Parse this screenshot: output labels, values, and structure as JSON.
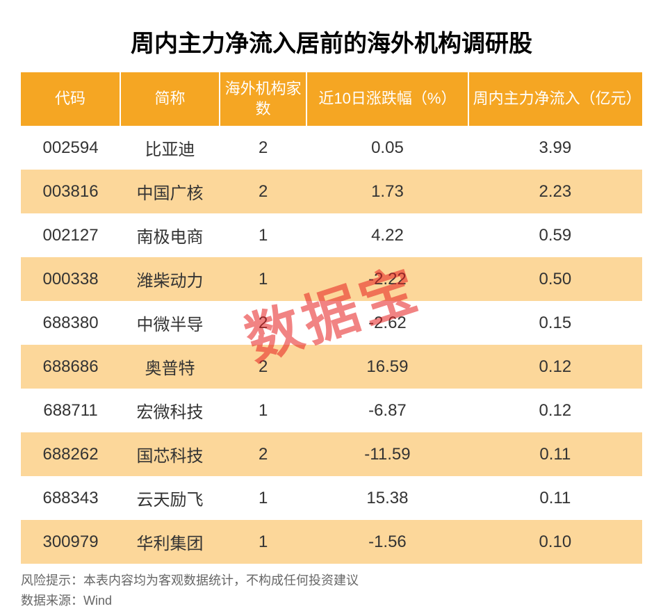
{
  "title": "周内主力净流入居前的海外机构调研股",
  "type": "table",
  "watermark": "数据宝",
  "columns": [
    {
      "label": "代码",
      "class": "col-code"
    },
    {
      "label": "简称",
      "class": "col-name"
    },
    {
      "label": "海外机构家数",
      "class": "col-inst"
    },
    {
      "label": "近10日涨跌幅（%）",
      "class": "col-change"
    },
    {
      "label": "周内主力净流入（亿元）",
      "class": "col-inflow"
    }
  ],
  "rows": [
    [
      "002594",
      "比亚迪",
      "2",
      "0.05",
      "3.99"
    ],
    [
      "003816",
      "中国广核",
      "2",
      "1.73",
      "2.23"
    ],
    [
      "002127",
      "南极电商",
      "1",
      "4.22",
      "0.59"
    ],
    [
      "000338",
      "潍柴动力",
      "1",
      "-2.22",
      "0.50"
    ],
    [
      "688380",
      "中微半导",
      "2",
      "-2.62",
      "0.15"
    ],
    [
      "688686",
      "奥普特",
      "2",
      "16.59",
      "0.12"
    ],
    [
      "688711",
      "宏微科技",
      "1",
      "-6.87",
      "0.12"
    ],
    [
      "688262",
      "国芯科技",
      "2",
      "-11.59",
      "0.11"
    ],
    [
      "688343",
      "云天励飞",
      "1",
      "15.38",
      "0.11"
    ],
    [
      "300979",
      "华利集团",
      "1",
      "-1.56",
      "0.10"
    ]
  ],
  "footer": {
    "risk": "风险提示：本表内容均为客观数据统计，不构成任何投资建议",
    "source": "数据来源：Wind"
  },
  "styling": {
    "header_bg": "#f5a623",
    "header_fg": "#ffffff",
    "row_even_bg": "#ffffff",
    "row_odd_bg": "#fcd79a",
    "title_fontsize": 34,
    "header_fontsize": 22,
    "cell_fontsize": 24,
    "footer_fontsize": 18,
    "watermark_color": "rgba(230,30,30,0.55)"
  }
}
